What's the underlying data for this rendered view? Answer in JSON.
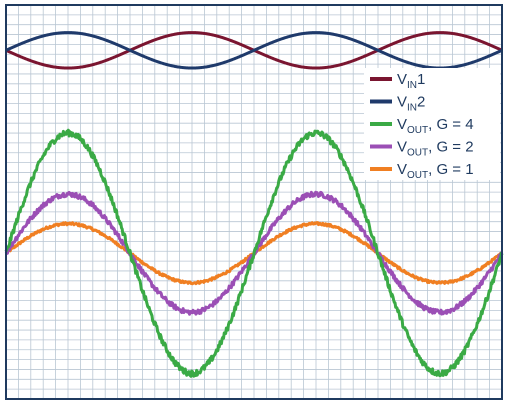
{
  "chart_data": {
    "type": "line",
    "title": "",
    "xlabel": "",
    "ylabel": "",
    "grid": true,
    "legend_position": "right",
    "x_unit": "cycles",
    "xlim": [
      0.0,
      2.0
    ],
    "ylim": [
      -1.0,
      1.0
    ],
    "colors": {
      "background": "#ffffff",
      "grid": "#b9c6d3",
      "border": "#1f3a5f",
      "legend_text": "#1f3a5f"
    },
    "series": [
      {
        "name": "VIN1",
        "name_main": "V",
        "name_sub": "IN",
        "name_suffix": "1",
        "color": "#7a1530",
        "kind": "sine",
        "offset": 0.77,
        "amplitude": 0.09,
        "phase_deg": 180,
        "noise": 0.0
      },
      {
        "name": "VIN2",
        "name_main": "V",
        "name_sub": "IN",
        "name_suffix": "2",
        "color": "#1f3a6b",
        "kind": "sine",
        "offset": 0.77,
        "amplitude": 0.09,
        "phase_deg": 0,
        "noise": 0.0
      },
      {
        "name": "VOUT, G = 4",
        "name_main": "V",
        "name_sub": "OUT",
        "name_suffix": ", G = 4",
        "color": "#3aaa45",
        "kind": "sine",
        "offset": -0.26,
        "amplitude": 0.61,
        "phase_deg": 0,
        "noise": 0.015
      },
      {
        "name": "VOUT, G = 2",
        "name_main": "V",
        "name_sub": "OUT",
        "name_suffix": ", G = 2",
        "color": "#9b4fb5",
        "kind": "sine",
        "offset": -0.26,
        "amplitude": 0.3,
        "phase_deg": 0,
        "noise": 0.012
      },
      {
        "name": "VOUT, G = 1",
        "name_main": "V",
        "name_sub": "OUT",
        "name_suffix": ", G = 1",
        "color": "#f07f22",
        "kind": "sine",
        "offset": -0.26,
        "amplitude": 0.15,
        "phase_deg": 0,
        "noise": 0.006
      }
    ]
  }
}
